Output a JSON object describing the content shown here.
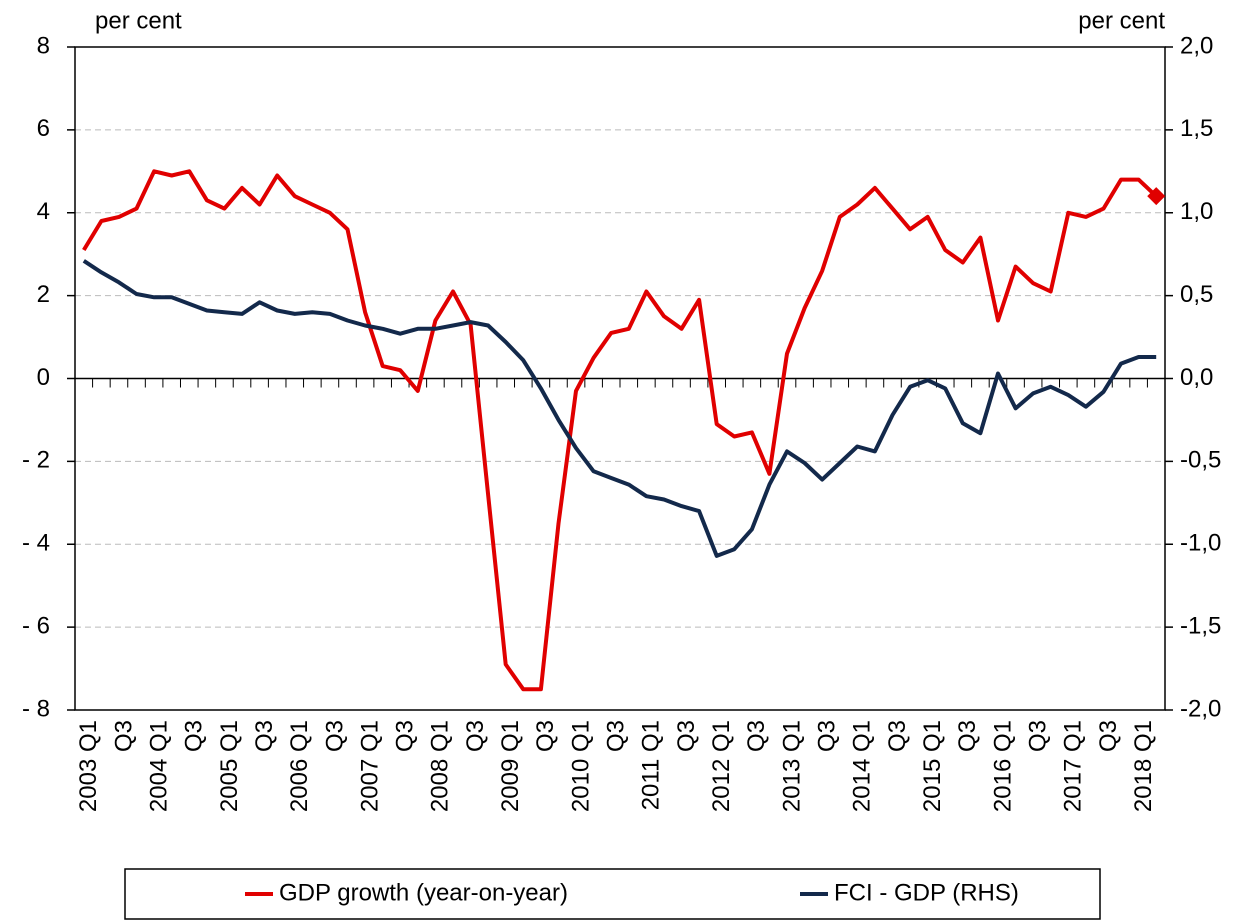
{
  "chart_data": {
    "type": "line",
    "y_unit_left": "per cent",
    "y_unit_right": "per cent",
    "categories": [
      "2003 Q1",
      null,
      "Q3",
      null,
      "2004 Q1",
      null,
      "Q3",
      null,
      "2005 Q1",
      null,
      "Q3",
      null,
      "2006 Q1",
      null,
      "Q3",
      null,
      "2007 Q1",
      null,
      "Q3",
      null,
      "2008 Q1",
      null,
      "Q3",
      null,
      "2009 Q1",
      null,
      "Q3",
      null,
      "2010 Q1",
      null,
      "Q3",
      null,
      "2011 Q1",
      null,
      "Q3",
      null,
      "2012 Q1",
      null,
      "Q3",
      null,
      "2013 Q1",
      null,
      "Q3",
      null,
      "2014 Q1",
      null,
      "Q3",
      null,
      "2015 Q1",
      null,
      "Q3",
      null,
      "2016 Q1",
      null,
      "Q3",
      null,
      "2017 Q1",
      null,
      "Q3",
      null,
      "2018 Q1",
      null
    ],
    "series": [
      {
        "name": "GDP growth (year-on-year)",
        "color": "#e00000",
        "end_marker": "diamond",
        "values": [
          3.1,
          3.8,
          3.9,
          4.1,
          5.0,
          4.9,
          5.0,
          4.3,
          4.1,
          4.6,
          4.2,
          4.9,
          4.4,
          4.2,
          4.0,
          3.6,
          1.6,
          0.3,
          0.2,
          -0.3,
          1.4,
          2.1,
          1.3,
          -2.8,
          -6.9,
          -7.5,
          -7.5,
          -3.5,
          -0.3,
          0.5,
          1.1,
          1.2,
          2.1,
          1.5,
          1.2,
          1.9,
          -1.1,
          -1.4,
          -1.3,
          -2.3,
          0.6,
          1.7,
          2.6,
          3.9,
          4.2,
          4.6,
          4.1,
          3.6,
          3.9,
          3.1,
          2.8,
          3.4,
          1.4,
          2.7,
          2.3,
          2.1,
          4.0,
          3.9,
          4.1,
          4.8,
          4.8,
          4.4
        ]
      },
      {
        "name": "FCI - GDP (RHS)",
        "color": "#13294b",
        "axis": "y2",
        "values": [
          0.71,
          0.64,
          0.58,
          0.51,
          0.49,
          0.49,
          0.45,
          0.41,
          0.4,
          0.39,
          0.46,
          0.41,
          0.39,
          0.4,
          0.39,
          0.35,
          0.32,
          0.3,
          0.27,
          0.3,
          0.3,
          0.32,
          0.34,
          0.32,
          0.22,
          0.11,
          -0.06,
          -0.25,
          -0.42,
          -0.56,
          -0.6,
          -0.64,
          -0.71,
          -0.73,
          -0.77,
          -0.8,
          -1.07,
          -1.03,
          -0.91,
          -0.64,
          -0.44,
          -0.51,
          -0.61,
          -0.51,
          -0.41,
          -0.44,
          -0.22,
          -0.05,
          -0.01,
          -0.06,
          -0.27,
          -0.33,
          0.03,
          -0.18,
          -0.09,
          -0.05,
          -0.1,
          -0.17,
          -0.08,
          0.09,
          0.13,
          0.13
        ]
      }
    ],
    "ylim": [
      -8,
      8
    ],
    "yticks": [
      {
        "value": -8,
        "label": "- 8"
      },
      {
        "value": -6,
        "label": "- 6"
      },
      {
        "value": -4,
        "label": "- 4"
      },
      {
        "value": -2,
        "label": "- 2"
      },
      0,
      2,
      4,
      6,
      8
    ],
    "y2lim": [
      -2,
      2
    ],
    "y2ticks": [
      {
        "value": -2,
        "label": "-2,0"
      },
      {
        "value": -1.5,
        "label": "-1,5"
      },
      {
        "value": -1,
        "label": "-1,0"
      },
      {
        "value": -0.5,
        "label": "-0,5"
      },
      {
        "value": 0,
        "label": "0,0"
      },
      {
        "value": 0.5,
        "label": "0,5"
      },
      {
        "value": 1,
        "label": "1,0"
      },
      {
        "value": 1.5,
        "label": "1,5"
      },
      {
        "value": 2,
        "label": "2,0"
      }
    ],
    "grid": true,
    "legend": "bottom"
  }
}
